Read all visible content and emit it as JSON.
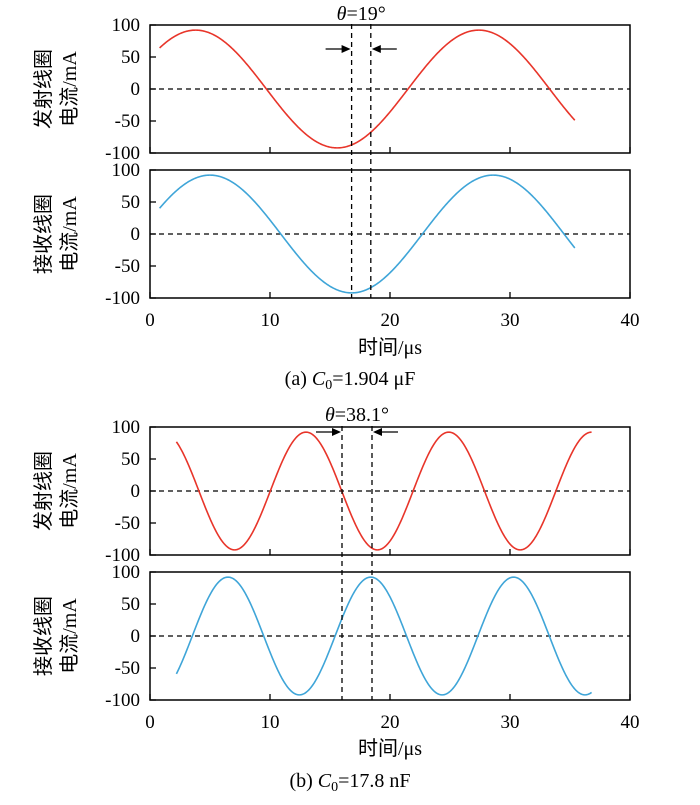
{
  "chart_data": [
    {
      "id": "a",
      "type": "line",
      "caption_prefix": "(a)  ",
      "caption_var": "C",
      "caption_sub": "0",
      "caption_value": "=1.904 μF",
      "angle_var": "θ",
      "angle_value": "=19°",
      "marker_x": [
        16.8,
        18.4
      ],
      "xlabel": "时间/μs",
      "xlim": [
        0,
        40
      ],
      "xticks": [
        "0",
        "10",
        "20",
        "30",
        "40"
      ],
      "panels": [
        {
          "ylabel_lines": [
            "发射线圈",
            "电流/mA"
          ],
          "ylim": [
            -100,
            100
          ],
          "yticks": [
            "100",
            "50",
            "0",
            "-50",
            "-100"
          ],
          "series": [
            {
              "color": "#e8352a",
              "amplitude": 92,
              "period": 23.6,
              "peak_x": 3.8,
              "x_range": [
                0.8,
                35.4
              ]
            }
          ]
        },
        {
          "ylabel_lines": [
            "接收线圈",
            "电流/mA"
          ],
          "ylim": [
            -100,
            100
          ],
          "yticks": [
            "100",
            "50",
            "0",
            "-50",
            "-100"
          ],
          "series": [
            {
              "color": "#3fa5d8",
              "amplitude": 92,
              "period": 23.6,
              "peak_x": 5.0,
              "x_range": [
                0.8,
                35.4
              ]
            }
          ]
        }
      ]
    },
    {
      "id": "b",
      "type": "line",
      "caption_prefix": "(b)  ",
      "caption_var": "C",
      "caption_sub": "0",
      "caption_value": "=17.8 nF",
      "angle_var": "θ",
      "angle_value": "=38.1°",
      "marker_x": [
        16.0,
        18.5
      ],
      "xlabel": "时间/μs",
      "xlim": [
        0,
        40
      ],
      "xticks": [
        "0",
        "10",
        "20",
        "30",
        "40"
      ],
      "panels": [
        {
          "ylabel_lines": [
            "发射线圈",
            "电流/mA"
          ],
          "ylim": [
            -100,
            100
          ],
          "yticks": [
            "100",
            "50",
            "0",
            "-50",
            "-100"
          ],
          "series": [
            {
              "color": "#e8352a",
              "amplitude": 92,
              "period": 11.9,
              "peak_x": 13.0,
              "x_range": [
                2.2,
                36.8
              ]
            }
          ]
        },
        {
          "ylabel_lines": [
            "接收线圈",
            "电流/mA"
          ],
          "ylim": [
            -100,
            100
          ],
          "yticks": [
            "100",
            "50",
            "0",
            "-50",
            "-100"
          ],
          "series": [
            {
              "color": "#3fa5d8",
              "amplitude": 92,
              "period": 11.9,
              "peak_x": 6.5,
              "x_range": [
                2.2,
                36.8
              ]
            }
          ]
        }
      ]
    }
  ]
}
